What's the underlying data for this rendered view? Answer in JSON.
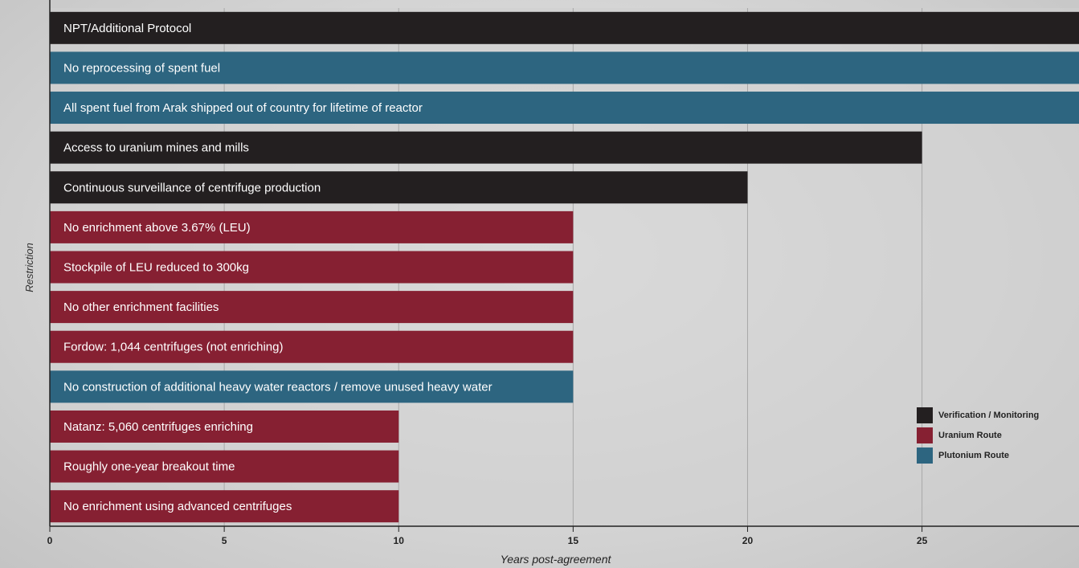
{
  "chart_data": {
    "type": "bar",
    "orientation": "horizontal",
    "xlabel": "Years post-agreement",
    "ylabel": "Restriction",
    "xlim": [
      0,
      29.5
    ],
    "xticks": [
      0,
      5,
      10,
      15,
      20,
      25
    ],
    "grid": true,
    "legend_position": "bottom-right",
    "categories": [
      "NPT/Additional Protocol",
      "No reprocessing of spent fuel",
      "All spent fuel from Arak shipped out of country for lifetime of reactor",
      "Access to uranium mines and mills",
      "Continuous surveillance of centrifuge production",
      "No enrichment above 3.67% (LEU)",
      "Stockpile of LEU reduced to 300kg",
      "No other enrichment facilities",
      "Fordow: 1,044 centrifuges (not enriching)",
      "No construction of additional heavy water reactors / remove unused heavy water",
      "Natanz: 5,060 centrifuges enriching",
      "Roughly one-year breakout time",
      "No enrichment using advanced centrifuges"
    ],
    "values": [
      29.5,
      29.5,
      29.5,
      25,
      20,
      15,
      15,
      15,
      15,
      15,
      10,
      10,
      10
    ],
    "groups": [
      "Verification / Monitoring",
      "Plutonium Route",
      "Plutonium Route",
      "Verification / Monitoring",
      "Verification / Monitoring",
      "Uranium Route",
      "Uranium Route",
      "Uranium Route",
      "Uranium Route",
      "Plutonium Route",
      "Uranium Route",
      "Uranium Route",
      "Uranium Route"
    ],
    "legend": [
      {
        "name": "Verification / Monitoring",
        "color": "#231f20"
      },
      {
        "name": "Uranium Route",
        "color": "#862032"
      },
      {
        "name": "Plutonium Route",
        "color": "#2d6580"
      }
    ]
  },
  "colors": {
    "Verification / Monitoring": "#231f20",
    "Uranium Route": "#862032",
    "Plutonium Route": "#2d6580"
  }
}
